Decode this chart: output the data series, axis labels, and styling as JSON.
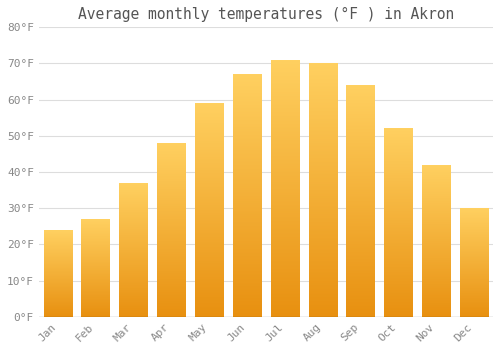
{
  "title": "Average monthly temperatures (°F ) in Akron",
  "months": [
    "Jan",
    "Feb",
    "Mar",
    "Apr",
    "May",
    "Jun",
    "Jul",
    "Aug",
    "Sep",
    "Oct",
    "Nov",
    "Dec"
  ],
  "values": [
    24,
    27,
    37,
    48,
    59,
    67,
    71,
    70,
    64,
    52,
    42,
    30
  ],
  "bar_color_bottom": "#E89010",
  "bar_color_top": "#FFD060",
  "ylim": [
    0,
    80
  ],
  "yticks": [
    0,
    10,
    20,
    30,
    40,
    50,
    60,
    70,
    80
  ],
  "ytick_labels": [
    "0°F",
    "10°F",
    "20°F",
    "30°F",
    "40°F",
    "50°F",
    "60°F",
    "70°F",
    "80°F"
  ],
  "background_color": "#ffffff",
  "grid_color": "#dddddd",
  "title_fontsize": 10.5,
  "tick_fontsize": 8,
  "title_color": "#555555",
  "tick_color": "#888888",
  "bar_width": 0.75,
  "figsize": [
    5.0,
    3.5
  ],
  "dpi": 100
}
